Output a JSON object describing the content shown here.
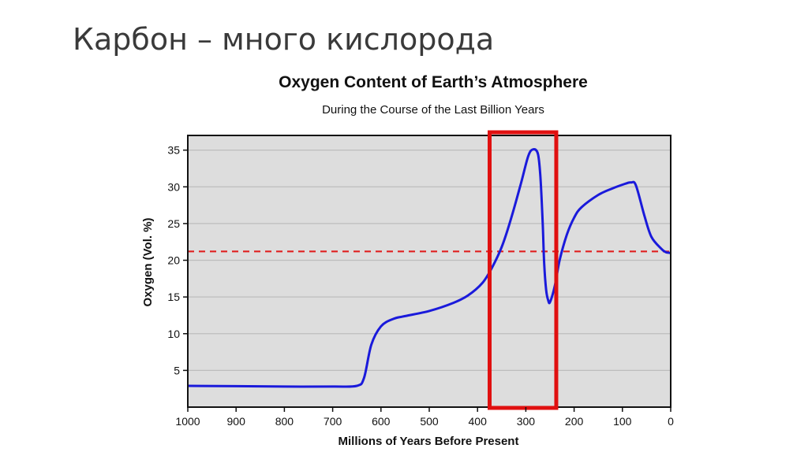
{
  "slide": {
    "title": "Карбон – много кислорода"
  },
  "chart_data": {
    "type": "line",
    "title": "Oxygen Content of Earth’s Atmosphere",
    "subtitle": "During the Course of the Last Billion Years",
    "xlabel": "Millions of Years Before Present",
    "ylabel": "Oxygen (Vol. %)",
    "xlim": [
      1000,
      0
    ],
    "ylim": [
      0,
      37
    ],
    "x_reversed": true,
    "xticks": [
      1000,
      900,
      800,
      700,
      600,
      500,
      400,
      300,
      200,
      100,
      0
    ],
    "yticks": [
      5,
      10,
      15,
      20,
      25,
      30,
      35
    ],
    "grid": "horizontal",
    "background": "#dddddd",
    "series": [
      {
        "color": "#1a1adb",
        "x": [
          1000,
          900,
          800,
          700,
          650,
          635,
          620,
          600,
          575,
          550,
          500,
          450,
          420,
          390,
          370,
          350,
          330,
          310,
          295,
          285,
          275,
          270,
          265,
          262,
          258,
          254,
          250,
          240,
          230,
          215,
          200,
          185,
          150,
          120,
          95,
          82,
          72,
          55,
          40,
          20,
          10,
          0
        ],
        "y": [
          2.9,
          2.85,
          2.8,
          2.8,
          2.9,
          4,
          8.5,
          11,
          12,
          12.4,
          13.1,
          14.2,
          15.2,
          16.9,
          19,
          21.8,
          25.8,
          30.5,
          34.2,
          35.1,
          34.5,
          31.5,
          25,
          19.5,
          16,
          14.6,
          14.3,
          16.5,
          20,
          23.5,
          25.8,
          27.2,
          28.9,
          29.8,
          30.4,
          30.6,
          30.2,
          26.2,
          23.2,
          21.6,
          21.1,
          21
        ]
      }
    ],
    "reference_line": {
      "y": 21.2,
      "style": "dashed",
      "color": "#e02020"
    },
    "highlight_box": {
      "x_from": 375,
      "x_to": 237,
      "color": "#e01010"
    }
  }
}
